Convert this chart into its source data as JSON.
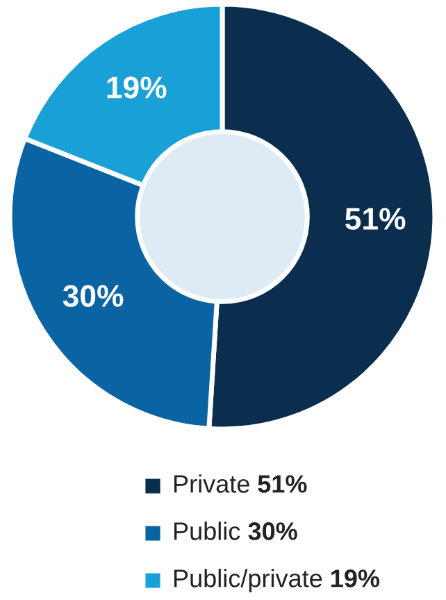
{
  "chart_data": {
    "type": "donut",
    "categories": [
      "Private",
      "Public",
      "Public/private"
    ],
    "values": [
      51,
      30,
      19
    ],
    "colors": [
      "#0b2d4e",
      "#0a63a3",
      "#19a0d7"
    ],
    "value_labels": [
      "51%",
      "30%",
      "19%"
    ],
    "legend": "bottom"
  }
}
